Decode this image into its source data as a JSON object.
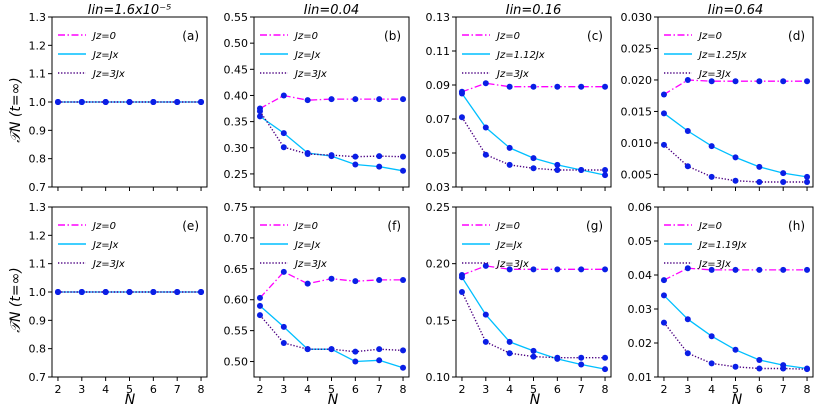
{
  "figure": {
    "ylabel": "𝒯N (t=∞)",
    "xlabel": "N"
  },
  "chart_data": [
    {
      "type": "line",
      "panel": "(a)",
      "title": "Iin=1.6x10⁻⁵",
      "x": [
        2,
        3,
        4,
        5,
        6,
        7,
        8
      ],
      "ylim": [
        0.7,
        1.3
      ],
      "yticks": [
        "0.7",
        "0.8",
        "0.9",
        "1.0",
        "1.1",
        "1.2",
        "1.3"
      ],
      "ytick_values": [
        0.7,
        0.8,
        0.9,
        1.0,
        1.1,
        1.2,
        1.3
      ],
      "series": [
        {
          "name": "Jz=0",
          "style": "dashdot",
          "color": "#ff00ff",
          "values": [
            1.0,
            1.0,
            1.0,
            1.0,
            1.0,
            1.0,
            1.0
          ]
        },
        {
          "name": "Jz=Jx",
          "style": "solid",
          "color": "#00bfff",
          "values": [
            1.0,
            1.0,
            1.0,
            1.0,
            1.0,
            1.0,
            1.0
          ]
        },
        {
          "name": "Jz=3Jx",
          "style": "dotted",
          "color": "#4b0082",
          "values": [
            1.0,
            1.0,
            1.0,
            1.0,
            1.0,
            1.0,
            1.0
          ]
        }
      ]
    },
    {
      "type": "line",
      "panel": "(b)",
      "title": "Iin=0.04",
      "x": [
        2,
        3,
        4,
        5,
        6,
        7,
        8
      ],
      "ylim": [
        0.225,
        0.55
      ],
      "yticks": [
        "0.25",
        "0.30",
        "0.35",
        "0.40",
        "0.45",
        "0.50",
        "0.55"
      ],
      "ytick_values": [
        0.25,
        0.3,
        0.35,
        0.4,
        0.45,
        0.5,
        0.55
      ],
      "series": [
        {
          "name": "Jz=0",
          "style": "dashdot",
          "color": "#ff00ff",
          "values": [
            0.375,
            0.4,
            0.391,
            0.393,
            0.393,
            0.393,
            0.393
          ]
        },
        {
          "name": "Jz=Jx",
          "style": "solid",
          "color": "#00bfff",
          "values": [
            0.36,
            0.328,
            0.29,
            0.284,
            0.268,
            0.264,
            0.256
          ]
        },
        {
          "name": "Jz=3Jx",
          "style": "dotted",
          "color": "#4b0082",
          "values": [
            0.37,
            0.301,
            0.288,
            0.286,
            0.283,
            0.284,
            0.283
          ]
        }
      ]
    },
    {
      "type": "line",
      "panel": "(c)",
      "title": "Iin=0.16",
      "x": [
        2,
        3,
        4,
        5,
        6,
        7,
        8
      ],
      "ylim": [
        0.03,
        0.13
      ],
      "yticks": [
        "0.03",
        "0.05",
        "0.07",
        "0.09",
        "0.11",
        "0.13"
      ],
      "ytick_values": [
        0.03,
        0.05,
        0.07,
        0.09,
        0.11,
        0.13
      ],
      "series": [
        {
          "name": "Jz=0",
          "style": "dashdot",
          "color": "#ff00ff",
          "values": [
            0.086,
            0.091,
            0.089,
            0.089,
            0.089,
            0.089,
            0.089
          ]
        },
        {
          "name": "Jz=1.12Jx",
          "style": "solid",
          "color": "#00bfff",
          "values": [
            0.085,
            0.065,
            0.053,
            0.047,
            0.043,
            0.04,
            0.037
          ]
        },
        {
          "name": "Jz=3Jx",
          "style": "dotted",
          "color": "#4b0082",
          "values": [
            0.071,
            0.049,
            0.043,
            0.041,
            0.04,
            0.04,
            0.04
          ]
        }
      ]
    },
    {
      "type": "line",
      "panel": "(d)",
      "title": "Iin=0.64",
      "x": [
        2,
        3,
        4,
        5,
        6,
        7,
        8
      ],
      "ylim": [
        0.003,
        0.03
      ],
      "yticks": [
        "0.005",
        "0.010",
        "0.015",
        "0.020",
        "0.025",
        "0.030"
      ],
      "ytick_values": [
        0.005,
        0.01,
        0.015,
        0.02,
        0.025,
        0.03
      ],
      "series": [
        {
          "name": "Jz=0",
          "style": "dashdot",
          "color": "#ff00ff",
          "values": [
            0.0177,
            0.02,
            0.0198,
            0.0198,
            0.0198,
            0.0198,
            0.0198
          ]
        },
        {
          "name": "Jz=1.25Jx",
          "style": "solid",
          "color": "#00bfff",
          "values": [
            0.0147,
            0.0119,
            0.0095,
            0.0077,
            0.0062,
            0.0052,
            0.0046
          ]
        },
        {
          "name": "Jz=3Jx",
          "style": "dotted",
          "color": "#4b0082",
          "values": [
            0.0097,
            0.0063,
            0.0046,
            0.004,
            0.0038,
            0.0038,
            0.0038
          ]
        }
      ]
    },
    {
      "type": "line",
      "panel": "(e)",
      "title": "",
      "x": [
        2,
        3,
        4,
        5,
        6,
        7,
        8
      ],
      "ylim": [
        0.7,
        1.3
      ],
      "yticks": [
        "0.7",
        "0.8",
        "0.9",
        "1.0",
        "1.1",
        "1.2",
        "1.3"
      ],
      "ytick_values": [
        0.7,
        0.8,
        0.9,
        1.0,
        1.1,
        1.2,
        1.3
      ],
      "series": [
        {
          "name": "Jz=0",
          "style": "dashdot",
          "color": "#ff00ff",
          "values": [
            1.0,
            1.0,
            1.0,
            1.0,
            1.0,
            1.0,
            1.0
          ]
        },
        {
          "name": "Jz=Jx",
          "style": "solid",
          "color": "#00bfff",
          "values": [
            1.0,
            1.0,
            1.0,
            1.0,
            1.0,
            1.0,
            1.0
          ]
        },
        {
          "name": "Jz=3Jx",
          "style": "dotted",
          "color": "#4b0082",
          "values": [
            1.0,
            1.0,
            1.0,
            1.0,
            1.0,
            1.0,
            1.0
          ]
        }
      ]
    },
    {
      "type": "line",
      "panel": "(f)",
      "title": "",
      "x": [
        2,
        3,
        4,
        5,
        6,
        7,
        8
      ],
      "ylim": [
        0.475,
        0.75
      ],
      "yticks": [
        "0.50",
        "0.55",
        "0.60",
        "0.65",
        "0.70",
        "0.75"
      ],
      "ytick_values": [
        0.5,
        0.55,
        0.6,
        0.65,
        0.7,
        0.75
      ],
      "series": [
        {
          "name": "Jz=0",
          "style": "dashdot",
          "color": "#ff00ff",
          "values": [
            0.603,
            0.645,
            0.626,
            0.634,
            0.63,
            0.632,
            0.632
          ]
        },
        {
          "name": "Jz=Jx",
          "style": "solid",
          "color": "#00bfff",
          "values": [
            0.59,
            0.556,
            0.52,
            0.52,
            0.5,
            0.502,
            0.49
          ]
        },
        {
          "name": "Jz=3Jx",
          "style": "dotted",
          "color": "#4b0082",
          "values": [
            0.575,
            0.53,
            0.52,
            0.52,
            0.516,
            0.52,
            0.518
          ]
        }
      ]
    },
    {
      "type": "line",
      "panel": "(g)",
      "title": "",
      "x": [
        2,
        3,
        4,
        5,
        6,
        7,
        8
      ],
      "ylim": [
        0.1,
        0.25
      ],
      "yticks": [
        "0.10",
        "0.15",
        "0.20",
        "0.25"
      ],
      "ytick_values": [
        0.1,
        0.15,
        0.2,
        0.25
      ],
      "series": [
        {
          "name": "Jz=0",
          "style": "dashdot",
          "color": "#ff00ff",
          "values": [
            0.19,
            0.198,
            0.195,
            0.195,
            0.195,
            0.195,
            0.195
          ]
        },
        {
          "name": "Jz=Jx",
          "style": "solid",
          "color": "#00bfff",
          "values": [
            0.188,
            0.155,
            0.131,
            0.123,
            0.116,
            0.111,
            0.107
          ]
        },
        {
          "name": "Jz=3Jx",
          "style": "dotted",
          "color": "#4b0082",
          "values": [
            0.175,
            0.131,
            0.121,
            0.118,
            0.117,
            0.117,
            0.117
          ]
        }
      ]
    },
    {
      "type": "line",
      "panel": "(h)",
      "title": "",
      "x": [
        2,
        3,
        4,
        5,
        6,
        7,
        8
      ],
      "ylim": [
        0.01,
        0.06
      ],
      "yticks": [
        "0.01",
        "0.02",
        "0.03",
        "0.04",
        "0.05",
        "0.06"
      ],
      "ytick_values": [
        0.01,
        0.02,
        0.03,
        0.04,
        0.05,
        0.06
      ],
      "series": [
        {
          "name": "Jz=0",
          "style": "dashdot",
          "color": "#ff00ff",
          "values": [
            0.0385,
            0.042,
            0.0415,
            0.0415,
            0.0415,
            0.0415,
            0.0415
          ]
        },
        {
          "name": "Jz=1.19Jx",
          "style": "solid",
          "color": "#00bfff",
          "values": [
            0.034,
            0.027,
            0.022,
            0.018,
            0.015,
            0.0135,
            0.0125
          ]
        },
        {
          "name": "Jz=3Jx",
          "style": "dotted",
          "color": "#4b0082",
          "values": [
            0.026,
            0.017,
            0.014,
            0.013,
            0.0125,
            0.0125,
            0.0123
          ]
        }
      ]
    }
  ]
}
